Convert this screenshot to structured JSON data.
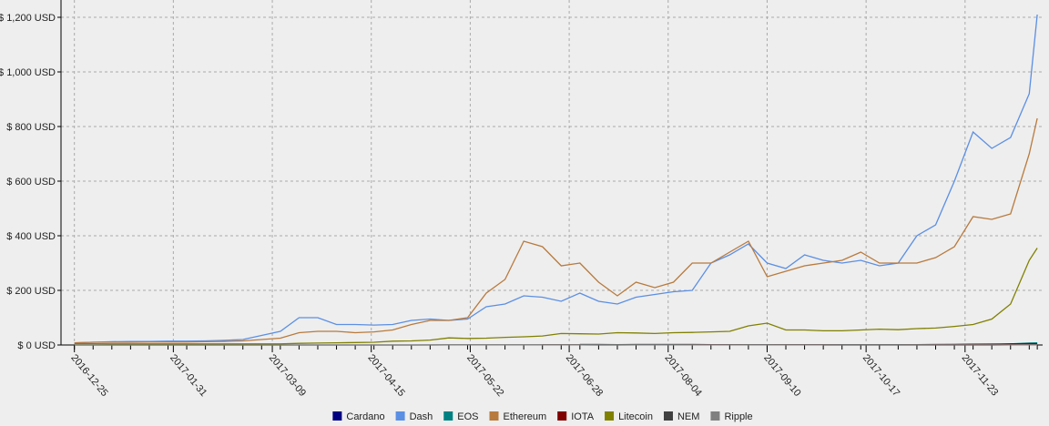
{
  "chart_data": {
    "type": "line",
    "x": [
      "2016-12-25",
      "2017-01-01",
      "2017-01-08",
      "2017-01-15",
      "2017-01-22",
      "2017-01-29",
      "2017-02-05",
      "2017-02-12",
      "2017-02-19",
      "2017-02-26",
      "2017-03-05",
      "2017-03-12",
      "2017-03-19",
      "2017-03-26",
      "2017-04-02",
      "2017-04-09",
      "2017-04-16",
      "2017-04-23",
      "2017-04-30",
      "2017-05-07",
      "2017-05-14",
      "2017-05-21",
      "2017-05-28",
      "2017-06-04",
      "2017-06-11",
      "2017-06-18",
      "2017-06-25",
      "2017-07-02",
      "2017-07-09",
      "2017-07-16",
      "2017-07-23",
      "2017-07-30",
      "2017-08-06",
      "2017-08-13",
      "2017-08-20",
      "2017-08-27",
      "2017-09-03",
      "2017-09-10",
      "2017-09-17",
      "2017-09-24",
      "2017-10-01",
      "2017-10-08",
      "2017-10-15",
      "2017-10-22",
      "2017-10-29",
      "2017-11-05",
      "2017-11-12",
      "2017-11-19",
      "2017-11-26",
      "2017-12-03",
      "2017-12-10",
      "2017-12-17",
      "2017-12-20"
    ],
    "series": [
      {
        "name": "Cardano",
        "color": "#000080",
        "values": [
          null,
          null,
          null,
          null,
          null,
          null,
          null,
          null,
          null,
          null,
          null,
          null,
          null,
          null,
          null,
          null,
          null,
          null,
          null,
          null,
          null,
          null,
          null,
          null,
          null,
          null,
          null,
          null,
          null,
          null,
          null,
          null,
          null,
          null,
          null,
          null,
          null,
          null,
          null,
          null,
          0.03,
          0.03,
          0.03,
          0.03,
          0.03,
          0.03,
          0.03,
          0.05,
          0.1,
          0.12,
          0.3,
          0.4,
          0.6
        ]
      },
      {
        "name": "Dash",
        "color": "#5b8fe3",
        "values": [
          8,
          10,
          12,
          13,
          13,
          14,
          14,
          15,
          17,
          20,
          35,
          50,
          100,
          100,
          75,
          75,
          73,
          75,
          90,
          95,
          90,
          95,
          140,
          150,
          180,
          175,
          160,
          190,
          160,
          150,
          175,
          185,
          195,
          200,
          300,
          330,
          370,
          300,
          280,
          330,
          310,
          300,
          310,
          290,
          300,
          400,
          440,
          600,
          780,
          720,
          760,
          920,
          1210
        ]
      },
      {
        "name": "EOS",
        "color": "#008080",
        "values": [
          null,
          null,
          null,
          null,
          null,
          null,
          null,
          null,
          null,
          null,
          null,
          null,
          null,
          null,
          null,
          null,
          null,
          null,
          null,
          null,
          null,
          null,
          null,
          null,
          null,
          null,
          null,
          2,
          2,
          1.5,
          2,
          2,
          2,
          2,
          1.2,
          1,
          0.8,
          0.8,
          0.7,
          0.8,
          0.8,
          0.9,
          0.9,
          1,
          1,
          1.5,
          2,
          2.5,
          3,
          3.5,
          4,
          7,
          8
        ]
      },
      {
        "name": "Ethereum",
        "color": "#b87a3d",
        "values": [
          8,
          10,
          10,
          10,
          11,
          11,
          11,
          12,
          13,
          15,
          20,
          25,
          45,
          50,
          50,
          45,
          48,
          55,
          75,
          90,
          90,
          100,
          190,
          240,
          380,
          360,
          290,
          300,
          230,
          180,
          230,
          210,
          230,
          300,
          300,
          340,
          380,
          250,
          270,
          290,
          300,
          310,
          340,
          300,
          300,
          300,
          320,
          360,
          470,
          460,
          480,
          700,
          830
        ]
      },
      {
        "name": "IOTA",
        "color": "#800000",
        "values": [
          null,
          null,
          null,
          null,
          null,
          null,
          null,
          null,
          null,
          null,
          null,
          null,
          null,
          null,
          null,
          null,
          null,
          null,
          null,
          null,
          null,
          null,
          null,
          null,
          null,
          0.5,
          0.4,
          0.3,
          0.25,
          0.2,
          0.25,
          0.3,
          0.35,
          0.8,
          0.9,
          0.7,
          0.5,
          0.4,
          0.6,
          0.7,
          0.6,
          0.4,
          0.4,
          0.4,
          0.4,
          0.6,
          1,
          1.5,
          3,
          2,
          4,
          5,
          4.5
        ]
      },
      {
        "name": "Litecoin",
        "color": "#808000",
        "values": [
          4.5,
          4.5,
          4,
          4,
          4,
          4,
          4,
          4,
          4,
          4,
          4,
          4,
          6,
          7,
          8,
          9,
          10,
          14,
          15,
          18,
          26,
          24,
          25,
          28,
          30,
          33,
          42,
          41,
          40,
          45,
          44,
          42,
          45,
          46,
          48,
          50,
          70,
          80,
          55,
          55,
          52,
          52,
          55,
          58,
          56,
          60,
          62,
          68,
          75,
          95,
          150,
          310,
          355
        ]
      },
      {
        "name": "NEM",
        "color": "#404040",
        "values": [
          0.004,
          0.004,
          0.004,
          0.004,
          0.004,
          0.004,
          0.004,
          0.004,
          0.004,
          0.004,
          0.004,
          0.005,
          0.007,
          0.01,
          0.02,
          0.02,
          0.02,
          0.03,
          0.1,
          0.15,
          0.2,
          0.2,
          0.25,
          0.3,
          0.25,
          0.2,
          0.2,
          0.18,
          0.15,
          0.15,
          0.2,
          0.2,
          0.22,
          0.3,
          0.3,
          0.3,
          0.28,
          0.25,
          0.2,
          0.2,
          0.18,
          0.2,
          0.2,
          0.2,
          0.2,
          0.2,
          0.2,
          0.2,
          0.2,
          0.3,
          0.35,
          0.5,
          0.7
        ]
      },
      {
        "name": "Ripple",
        "color": "#808080",
        "values": [
          0.006,
          0.006,
          0.007,
          0.007,
          0.007,
          0.007,
          0.007,
          0.007,
          0.007,
          0.007,
          0.007,
          0.01,
          0.02,
          0.02,
          0.03,
          0.03,
          0.03,
          0.05,
          0.07,
          0.2,
          0.3,
          0.3,
          0.3,
          0.3,
          0.3,
          0.3,
          0.25,
          0.25,
          0.2,
          0.17,
          0.2,
          0.18,
          0.17,
          0.17,
          0.17,
          0.2,
          0.22,
          0.2,
          0.2,
          0.2,
          0.2,
          0.2,
          0.25,
          0.2,
          0.2,
          0.22,
          0.21,
          0.23,
          0.25,
          0.24,
          0.4,
          0.7,
          0.8
        ]
      }
    ],
    "xlim": [
      "2016-12-20",
      "2017-12-22"
    ],
    "xticks": [
      "2016-12-25",
      "2017-01-31",
      "2017-03-09",
      "2017-04-15",
      "2017-05-22",
      "2017-06-28",
      "2017-08-04",
      "2017-09-10",
      "2017-10-17",
      "2017-11-23"
    ],
    "ylim": [
      0,
      1200
    ],
    "yticks": [
      {
        "value": 0,
        "label": "$ 0 USD"
      },
      {
        "value": 200,
        "label": "$ 200 USD"
      },
      {
        "value": 400,
        "label": "$ 400 USD"
      },
      {
        "value": 600,
        "label": "$ 600 USD"
      },
      {
        "value": 800,
        "label": "$ 800 USD"
      },
      {
        "value": 1000,
        "label": "$ 1,000 USD"
      },
      {
        "value": 1200,
        "label": "$ 1,200 USD"
      }
    ],
    "grid": true,
    "legend": "bottom"
  }
}
